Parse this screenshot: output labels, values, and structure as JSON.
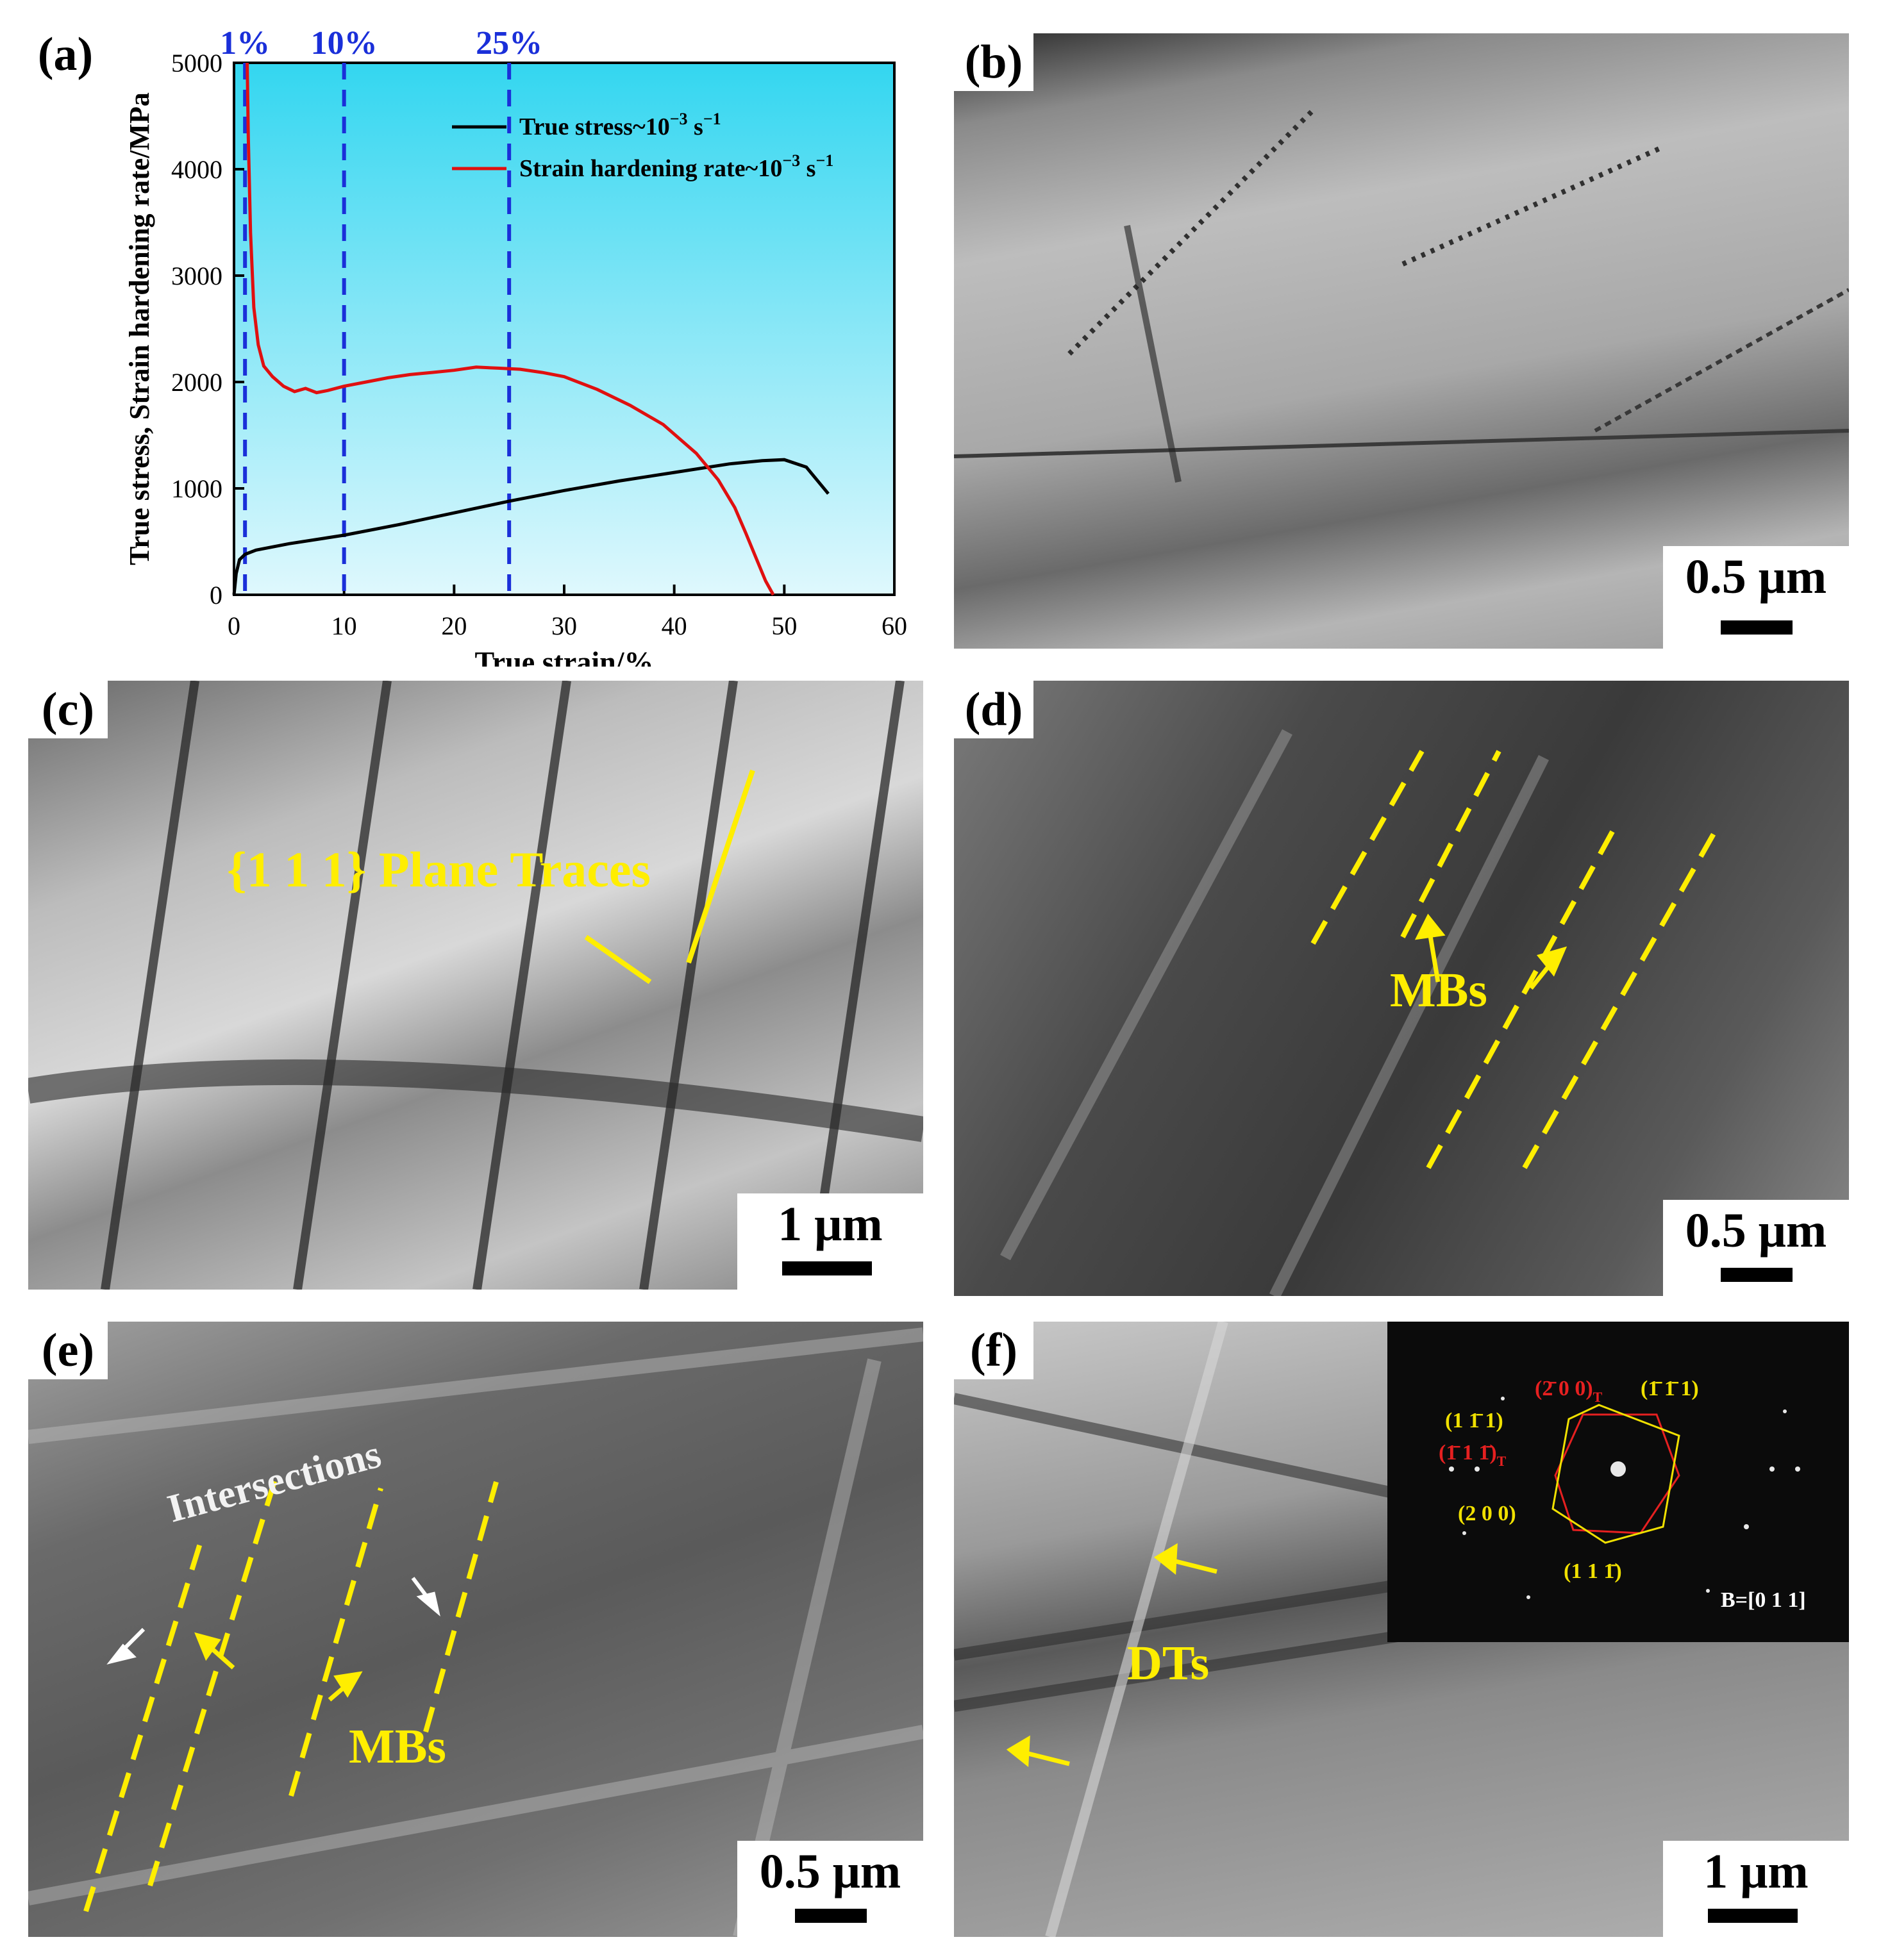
{
  "panels": {
    "a": {
      "label": "(a)",
      "legend": [
        {
          "label": "True stress~10",
          "sup": "−3",
          "tail": " s",
          "sup2": "−1",
          "color": "#000000"
        },
        {
          "label": "Strain hardening rate~10",
          "sup": "−3",
          "tail": " s",
          "sup2": "−1",
          "color": "#e01010"
        }
      ],
      "markers": [
        "1%",
        "10%",
        "25%"
      ]
    },
    "b": {
      "label": "(b)",
      "scale": "0.5 μm"
    },
    "c": {
      "label": "(c)",
      "scale": "1 μm",
      "annotation": "{1 1 1} Plane Traces"
    },
    "d": {
      "label": "(d)",
      "scale": "0.5 μm",
      "annotation": "MBs"
    },
    "e": {
      "label": "(e)",
      "scale": "0.5 μm",
      "annotation": "MBs",
      "annotation2": "Intersections"
    },
    "f": {
      "label": "(f)",
      "scale": "1 μm",
      "annotation": "DTs",
      "saed": {
        "zone": "B=[0 1 1]",
        "twin_spots": [
          "(2̄ 0 0)",
          "(1̄ 1 1̄)"
        ],
        "twin_sub": "T",
        "matrix_spots": [
          "(1̄ 1̄ 1)",
          "(1 1̄ 1)",
          "(2 0 0)",
          "(1 1 1̄)"
        ]
      }
    }
  },
  "chart_data": {
    "type": "line",
    "xlabel": "True strain/%",
    "ylabel": "True stress, Strain hardening rate/MPa",
    "xlim": [
      0,
      60
    ],
    "ylim": [
      0,
      5000
    ],
    "xticks": [
      0,
      10,
      20,
      30,
      40,
      50,
      60
    ],
    "yticks": [
      0,
      1000,
      2000,
      3000,
      4000,
      5000
    ],
    "vlines": [
      1,
      10,
      25
    ],
    "grid": false,
    "legend_position": "top-right",
    "series": [
      {
        "name": "True stress~10−3 s−1",
        "color": "#000000",
        "x": [
          0,
          0.2,
          0.5,
          1,
          2,
          5,
          10,
          15,
          20,
          25,
          30,
          35,
          40,
          45,
          48,
          50,
          52,
          54
        ],
        "y": [
          0,
          200,
          330,
          380,
          420,
          480,
          560,
          660,
          770,
          880,
          980,
          1070,
          1150,
          1230,
          1260,
          1270,
          1200,
          950
        ]
      },
      {
        "name": "Strain hardening rate~10−3 s−1",
        "color": "#e01010",
        "x": [
          1.2,
          1.3,
          1.5,
          1.8,
          2.2,
          2.7,
          3.5,
          4.5,
          5.5,
          6.5,
          7.5,
          8.5,
          10,
          12,
          14,
          16,
          18,
          20,
          22,
          24,
          26,
          28,
          30,
          33,
          36,
          39,
          42,
          44,
          45.5,
          46.5,
          47.5,
          48.3,
          49
        ],
        "y": [
          5000,
          4300,
          3400,
          2700,
          2350,
          2150,
          2050,
          1960,
          1910,
          1940,
          1900,
          1920,
          1960,
          2000,
          2040,
          2070,
          2090,
          2110,
          2140,
          2130,
          2120,
          2090,
          2050,
          1930,
          1780,
          1600,
          1330,
          1080,
          820,
          580,
          330,
          130,
          0
        ]
      }
    ]
  }
}
